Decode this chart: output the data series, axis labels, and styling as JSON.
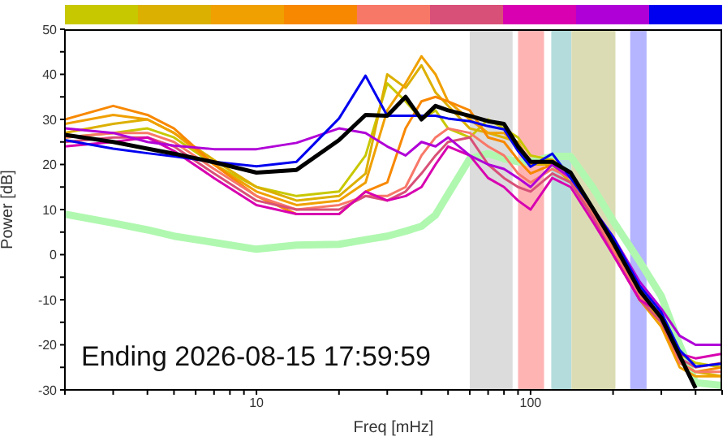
{
  "chart_data": {
    "type": "line",
    "xlabel": "Freq [mHz]",
    "ylabel": "Power [dB]",
    "annotations": [
      "Ending 2026-08-15 17:59:59"
    ],
    "log": "x",
    "marker": "none",
    "line_style": "solid",
    "xlim": [
      2,
      500
    ],
    "ylim": [
      -30,
      50
    ],
    "xticks": [
      {
        "value": 2,
        "label": null
      },
      {
        "value": 3,
        "label": null
      },
      {
        "value": 4,
        "label": null
      },
      {
        "value": 5,
        "label": null
      },
      {
        "value": 6,
        "label": null
      },
      {
        "value": 7,
        "label": null
      },
      {
        "value": 8,
        "label": null
      },
      {
        "value": 9,
        "label": null
      },
      10,
      {
        "value": 20,
        "label": null
      },
      {
        "value": 30,
        "label": null
      },
      {
        "value": 40,
        "label": null
      },
      {
        "value": 50,
        "label": null
      },
      {
        "value": 60,
        "label": null
      },
      {
        "value": 70,
        "label": null
      },
      {
        "value": 80,
        "label": null
      },
      {
        "value": 90,
        "label": null
      },
      100,
      {
        "value": 200,
        "label": null
      },
      {
        "value": 300,
        "label": null
      },
      {
        "value": 400,
        "label": null
      },
      {
        "value": 500,
        "label": null
      }
    ],
    "yticks": [
      -30,
      {
        "value": -25,
        "label": null
      },
      -20,
      {
        "value": -15,
        "label": null
      },
      -10,
      {
        "value": -5,
        "label": null
      },
      0,
      {
        "value": 5,
        "label": null
      },
      10,
      {
        "value": 15,
        "label": null
      },
      20,
      {
        "value": 25,
        "label": null
      },
      30,
      {
        "value": 35,
        "label": null
      },
      40,
      {
        "value": 45,
        "label": null
      },
      50
    ],
    "bands": [
      {
        "axis": "x",
        "from": 60,
        "to": 86,
        "color": "#dcdcdc"
      },
      {
        "axis": "x",
        "from": 90,
        "to": 112,
        "color": "#ffb4b4"
      },
      {
        "axis": "x",
        "from": 119,
        "to": 141,
        "color": "#b4dcdc"
      },
      {
        "axis": "x",
        "from": 141,
        "to": 204,
        "color": "#dcdcb4"
      },
      {
        "axis": "x",
        "from": 231,
        "to": 265,
        "color": "#b4b4ff"
      }
    ],
    "x": [
      2,
      3,
      4,
      5,
      7,
      10,
      14,
      20,
      25,
      30,
      35,
      40,
      45,
      50,
      60,
      70,
      80,
      90,
      100,
      120,
      140,
      170,
      200,
      250,
      300,
      350,
      400,
      500
    ],
    "series": [
      {
        "color": "#b0f8b0",
        "values": [
          9,
          7,
          5.5,
          4.1,
          2.7,
          1.2,
          2.1,
          2.3,
          3.3,
          4.1,
          5.2,
          6.3,
          8.8,
          13.4,
          21.3,
          22.4,
          21.3,
          20.6,
          20.6,
          21.8,
          21.8,
          14.6,
          7.5,
          -1.5,
          -9.2,
          -20,
          -28.4,
          -29
        ]
      },
      {
        "color": "#c8c800",
        "values": [
          26,
          27,
          28,
          26,
          20,
          15,
          13,
          14,
          22,
          38,
          34,
          30,
          32,
          28,
          26,
          30,
          28,
          26,
          22,
          21,
          18,
          10,
          3,
          -8,
          -14,
          -22,
          -24,
          -25
        ]
      },
      {
        "color": "#dcb000",
        "values": [
          27,
          29,
          30,
          27,
          21,
          15,
          12,
          13,
          18,
          40,
          37,
          42,
          36,
          33,
          28,
          27,
          26,
          25,
          20,
          20,
          16,
          9,
          2,
          -9,
          -15,
          -24,
          -26,
          -27
        ]
      },
      {
        "color": "#f0a000",
        "values": [
          29,
          31,
          30,
          27,
          20,
          14,
          11,
          12,
          16,
          32,
          38,
          44,
          40,
          34,
          30,
          27,
          27,
          24,
          20,
          21,
          18,
          10,
          2,
          -10,
          -16,
          -25,
          -27,
          -27
        ]
      },
      {
        "color": "#f88800",
        "values": [
          30,
          33,
          31,
          28,
          20,
          13,
          9,
          9,
          14,
          16,
          28,
          34,
          35,
          34,
          32,
          26,
          25,
          21,
          18,
          20,
          17,
          9,
          1,
          -10,
          -15,
          -24,
          -26,
          -25
        ]
      },
      {
        "color": "#f87868",
        "values": [
          26,
          27,
          27,
          25,
          19,
          13,
          10,
          11,
          13,
          13,
          15,
          22,
          26,
          28,
          27,
          24,
          22,
          18,
          16,
          19,
          17,
          9,
          1,
          -9,
          -14,
          -24,
          -26,
          -26
        ]
      },
      {
        "color": "#d85078",
        "values": [
          25,
          26,
          26,
          24,
          18,
          12,
          10,
          10,
          13,
          12,
          14,
          18,
          22,
          25,
          26,
          20,
          17,
          15,
          14,
          18,
          16,
          8,
          0,
          -10,
          -15,
          -23,
          -25,
          -24
        ]
      },
      {
        "color": "#d800b0",
        "values": [
          24,
          25,
          26,
          23,
          17,
          11,
          9,
          9,
          14,
          12,
          13,
          15,
          20,
          24,
          22,
          17,
          15,
          12,
          10,
          17,
          15,
          7,
          0,
          -10,
          -13,
          -22,
          -23,
          -22
        ]
      },
      {
        "color": "#b000d8",
        "values": [
          28,
          27,
          25,
          24.2,
          23.4,
          23.4,
          24.8,
          28,
          27,
          24,
          22,
          25,
          24,
          26,
          22,
          20,
          19,
          17,
          15,
          20,
          17,
          10,
          4,
          -6,
          -12,
          -18,
          -20,
          -20
        ]
      },
      {
        "color": "#0000f0",
        "values": [
          25.4,
          23.5,
          22.5,
          21.8,
          20.6,
          19.6,
          20.6,
          30.2,
          39.7,
          30.8,
          30.8,
          30.8,
          30.8,
          30.2,
          29.6,
          28.5,
          27.8,
          23,
          19.5,
          22.4,
          17,
          9.9,
          3.9,
          -6.9,
          -12.8,
          -21.2,
          -24.8,
          -24.2
        ]
      },
      {
        "color": "#000000",
        "values": [
          26.6,
          25,
          23.5,
          22.4,
          20.5,
          18.2,
          18.8,
          25.4,
          31,
          30.8,
          35,
          30,
          33,
          32,
          30.8,
          29.6,
          29,
          24,
          20.6,
          20.6,
          18.2,
          9.9,
          2.7,
          -8,
          -14,
          -22.4,
          -29.6,
          null
        ]
      }
    ]
  }
}
